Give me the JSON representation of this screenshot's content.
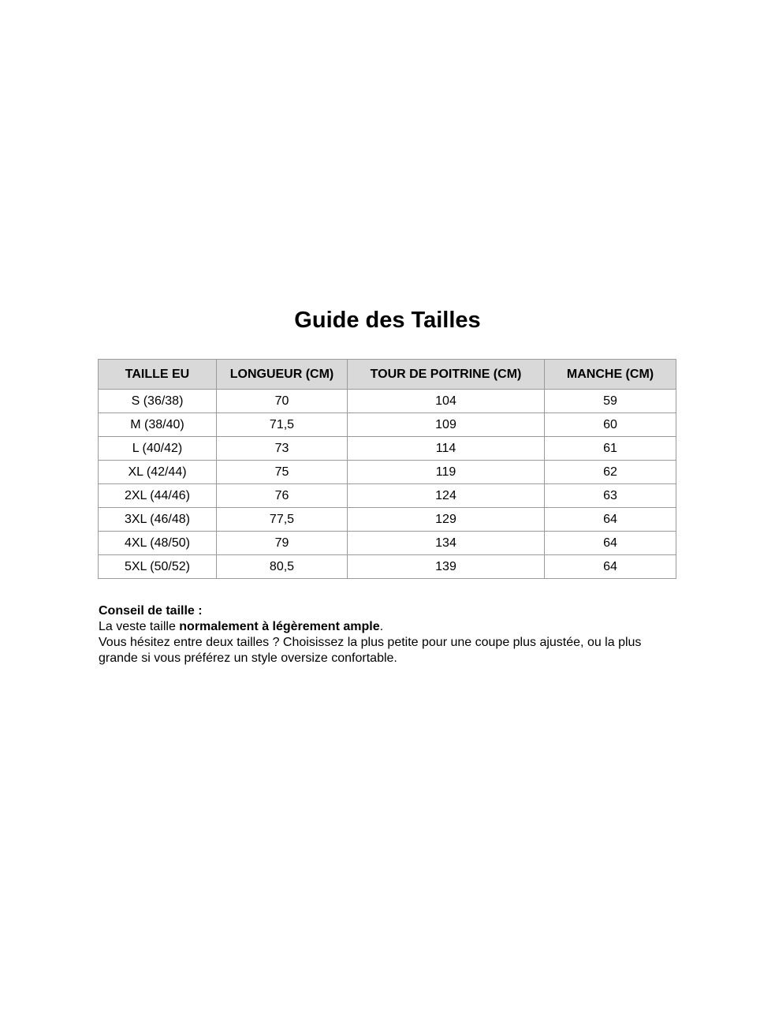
{
  "title": "Guide des Tailles",
  "table": {
    "headers": [
      "TAILLE EU",
      "LONGUEUR (CM)",
      "TOUR DE POITRINE (CM)",
      "MANCHE (CM)"
    ],
    "rows": [
      [
        "S (36/38)",
        "70",
        "104",
        "59"
      ],
      [
        "M (38/40)",
        "71,5",
        "109",
        "60"
      ],
      [
        "L (40/42)",
        "73",
        "114",
        "61"
      ],
      [
        "XL (42/44)",
        "75",
        "119",
        "62"
      ],
      [
        "2XL (44/46)",
        "76",
        "124",
        "63"
      ],
      [
        "3XL (46/48)",
        "77,5",
        "129",
        "64"
      ],
      [
        "4XL (48/50)",
        "79",
        "134",
        "64"
      ],
      [
        "5XL (50/52)",
        "80,5",
        "139",
        "64"
      ]
    ]
  },
  "advice": {
    "heading": "Conseil de taille :",
    "line1_prefix": "La veste taille ",
    "line1_bold": "normalement à légèrement ample",
    "line1_suffix": ".",
    "line2": "Vous hésitez entre deux tailles ? Choisissez la plus petite pour une coupe plus ajustée, ou la plus grande si vous préférez un style oversize confortable."
  }
}
